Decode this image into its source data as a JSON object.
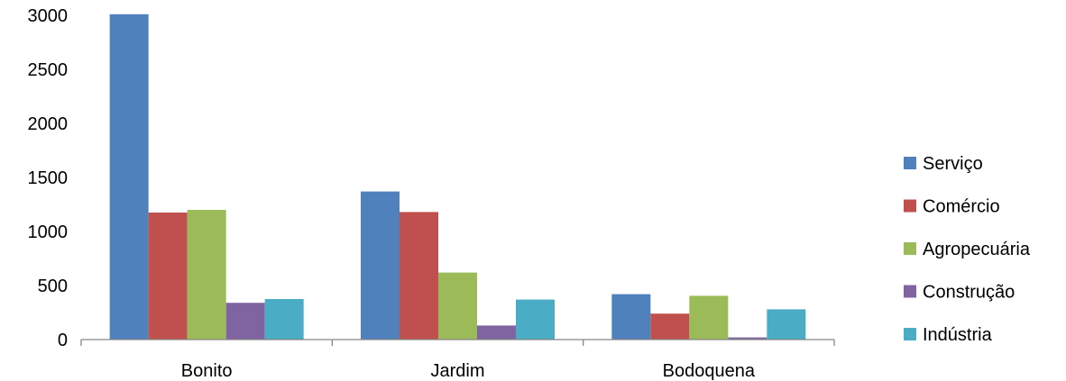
{
  "chart_data": {
    "type": "bar",
    "title": "",
    "xlabel": "",
    "ylabel": "",
    "categories": [
      "Bonito",
      "Jardim",
      "Bodoquena"
    ],
    "series": [
      {
        "name": "Serviço",
        "color": "#4F81BD",
        "values": [
          3010,
          1370,
          420
        ]
      },
      {
        "name": "Comércio",
        "color": "#C0504D",
        "values": [
          1175,
          1180,
          240
        ]
      },
      {
        "name": "Agropecuária",
        "color": "#9BBB59",
        "values": [
          1200,
          620,
          405
        ]
      },
      {
        "name": "Construção",
        "color": "#8064A2",
        "values": [
          340,
          130,
          20
        ]
      },
      {
        "name": "Indústria",
        "color": "#4BACC6",
        "values": [
          375,
          370,
          280
        ]
      }
    ],
    "ylim": [
      0,
      3000
    ],
    "yticks": [
      "0",
      "500",
      "1000",
      "1500",
      "2000",
      "2500",
      "3000"
    ],
    "grid": false,
    "legend_position": "right"
  }
}
